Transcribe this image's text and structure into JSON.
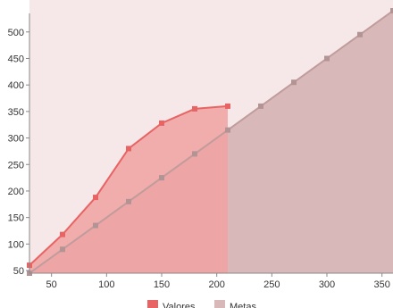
{
  "chart_data": {
    "type": "area",
    "title": "",
    "xlabel": "",
    "ylabel": "",
    "xlim": [
      30,
      360
    ],
    "ylim": [
      45,
      535
    ],
    "x_ticks": [
      50,
      100,
      150,
      200,
      250,
      300,
      350
    ],
    "y_ticks": [
      50,
      100,
      150,
      200,
      250,
      300,
      350,
      400,
      450,
      500
    ],
    "grid": false,
    "legend_position": "bottom",
    "background_color": "#f6e8e8",
    "series": [
      {
        "name": "Valores",
        "color": "#e86464",
        "fill": "#f0a1a1",
        "x": [
          30,
          60,
          90,
          120,
          150,
          180,
          210
        ],
        "y": [
          60,
          118,
          188,
          280,
          328,
          355,
          360
        ]
      },
      {
        "name": "Metas",
        "color": "#c09c9c",
        "fill": "#d9b8ba",
        "x": [
          30,
          60,
          90,
          120,
          150,
          180,
          210,
          240,
          270,
          300,
          330,
          360
        ],
        "y": [
          45,
          90,
          135,
          180,
          225,
          270,
          315,
          360,
          405,
          450,
          495,
          540
        ]
      }
    ]
  }
}
